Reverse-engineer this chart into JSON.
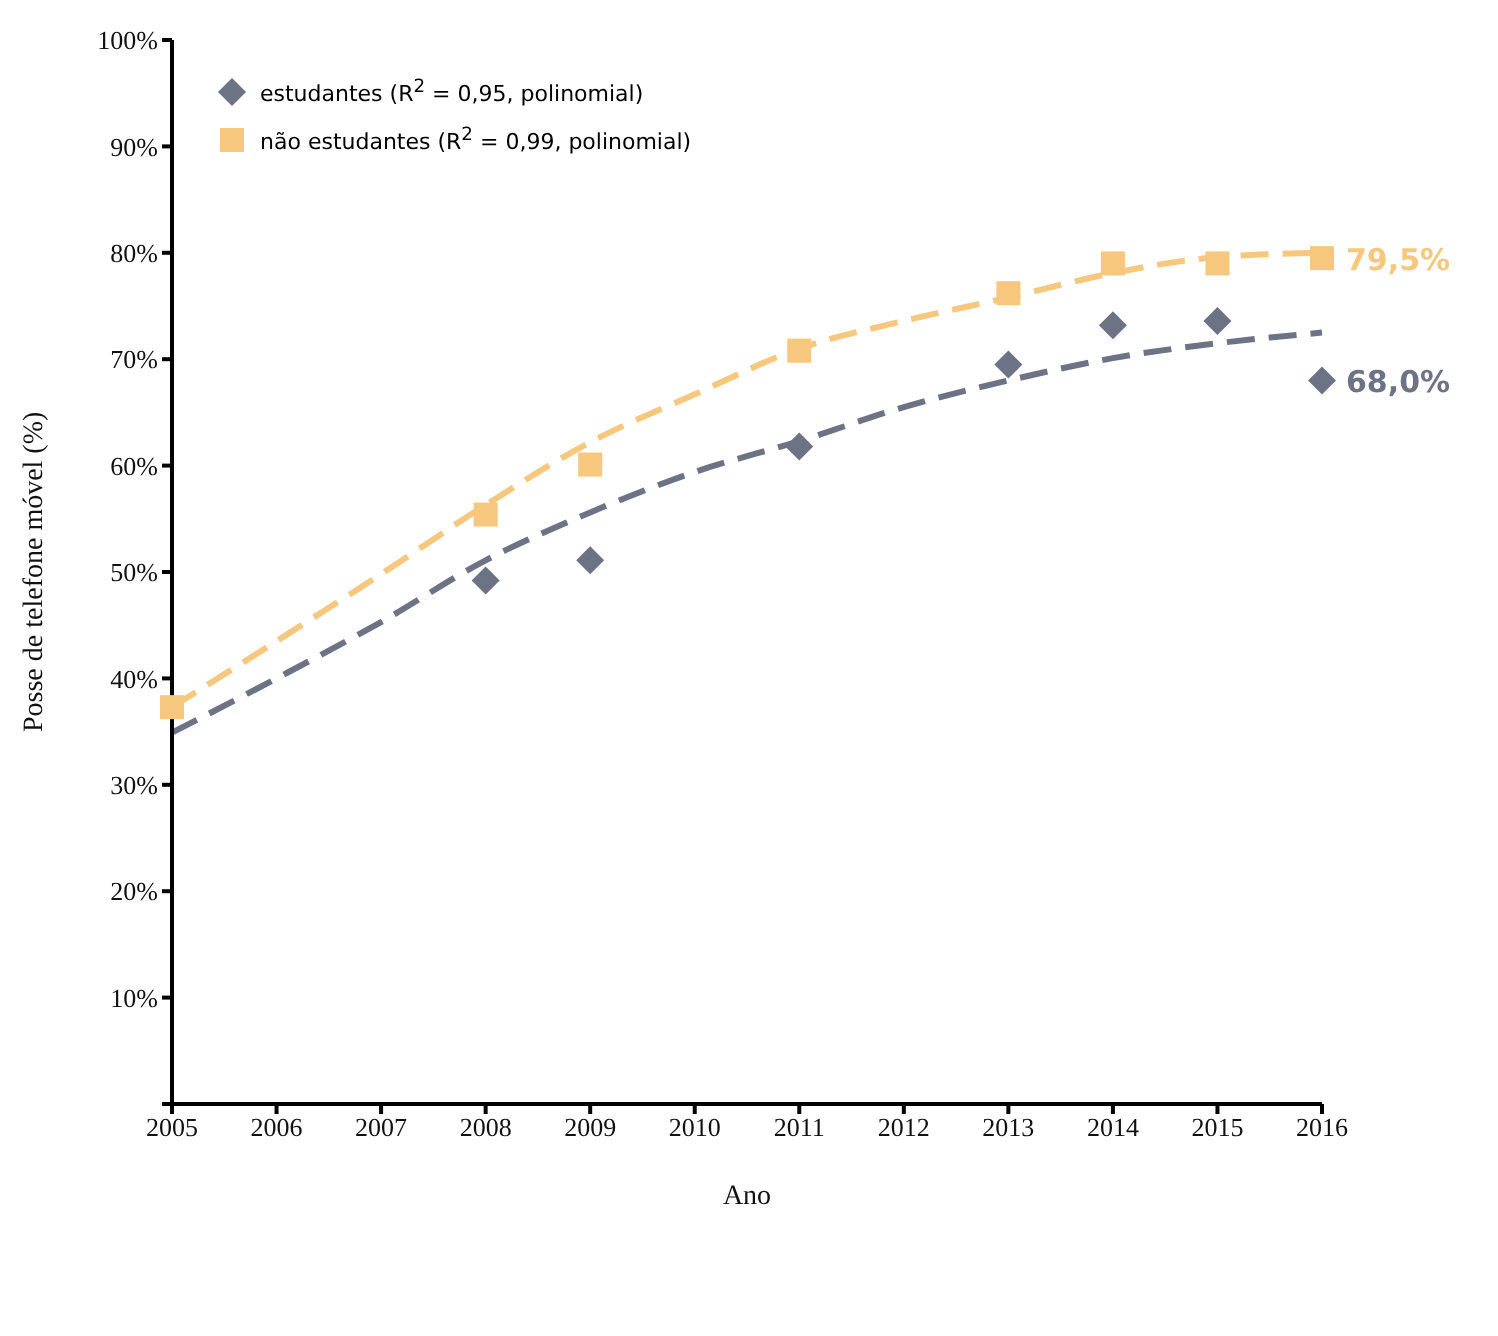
{
  "chart_data": {
    "type": "scatter",
    "xlabel": "Ano",
    "ylabel": "Posse de telefone móvel (%)",
    "xlim": [
      2005,
      2016
    ],
    "xticks": [
      2005,
      2006,
      2007,
      2008,
      2009,
      2010,
      2011,
      2012,
      2013,
      2014,
      2015,
      2016
    ],
    "ylim": [
      0,
      100
    ],
    "yticks": [
      {
        "value": 0,
        "label": null
      },
      {
        "value": 10,
        "label": "10%"
      },
      {
        "value": 20,
        "label": "20%"
      },
      {
        "value": 30,
        "label": "30%"
      },
      {
        "value": 40,
        "label": "40%"
      },
      {
        "value": 50,
        "label": "50%"
      },
      {
        "value": 60,
        "label": "60%"
      },
      {
        "value": 70,
        "label": "70%"
      },
      {
        "value": 80,
        "label": "80%"
      },
      {
        "value": 90,
        "label": "90%"
      },
      {
        "value": 100,
        "label": "100%"
      }
    ],
    "grid": false,
    "legend": "top left",
    "series": [
      {
        "type": "line",
        "color": "#6b7385",
        "marker": "none",
        "line_style": "dashed",
        "x": [
          2005,
          2006,
          2007,
          2008,
          2009,
          2010,
          2011,
          2012,
          2013,
          2014,
          2015,
          2016
        ],
        "values": [
          34.9,
          40.0,
          45.3,
          51.1,
          55.6,
          59.4,
          62.3,
          65.5,
          68.0,
          70.1,
          71.5,
          72.5
        ]
      },
      {
        "type": "line",
        "color": "#f8c77e",
        "marker": "none",
        "line_style": "dashed",
        "x": [
          2005,
          2006,
          2007,
          2008,
          2009,
          2010,
          2011,
          2012,
          2013,
          2014,
          2015,
          2016
        ],
        "values": [
          37.3,
          43.5,
          49.8,
          56.3,
          62.2,
          66.7,
          71.0,
          73.6,
          75.8,
          78.1,
          79.6,
          80.0
        ]
      },
      {
        "name": "estudantes (R$^{2}$ = 0,95, polinomial)",
        "color": "#6b7385",
        "marker": "diamond",
        "x": [
          2008,
          2009,
          2011,
          2013,
          2014,
          2015,
          2016
        ],
        "values": [
          49.2,
          51.1,
          61.8,
          69.5,
          73.2,
          73.6,
          68.0
        ],
        "value_labels": [
          null,
          null,
          null,
          null,
          null,
          null,
          "68,0%"
        ]
      },
      {
        "name": "não estudantes (R$^{2}$ = 0,99, polinomial)",
        "color": "#f8c77e",
        "marker": "square",
        "x": [
          2005,
          2008,
          2009,
          2011,
          2013,
          2014,
          2015,
          2016
        ],
        "values": [
          37.3,
          55.4,
          60.1,
          70.8,
          76.2,
          79.0,
          79.0,
          79.5
        ],
        "value_labels": [
          null,
          null,
          null,
          null,
          null,
          null,
          null,
          "79,5%"
        ]
      }
    ]
  }
}
